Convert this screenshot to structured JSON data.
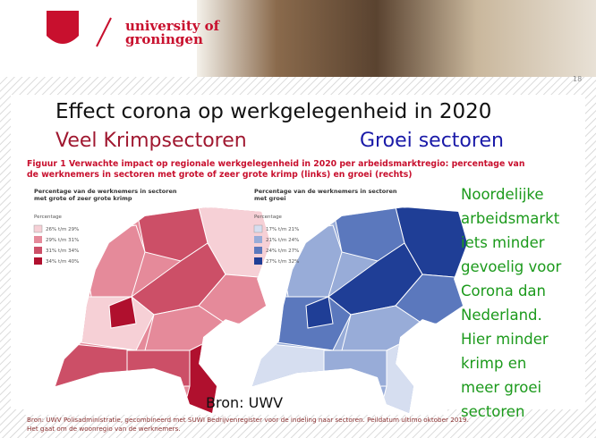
{
  "header": {
    "logo_line1": "university of",
    "logo_line2": "groningen",
    "page_number": "18"
  },
  "title": "Effect corona op werkgelegenheid in 2020",
  "subtitle_left": "Veel Krimpsectoren",
  "subtitle_right": "Groei sectoren",
  "figure": {
    "caption_lines": [
      "Figuur 1 Verwachte impact op regionale werkgelegenheid in 2020 per arbeidsmarktregio: percentage van",
      "de werknemers in sectoren met grote of zeer grote krimp (links) en groei (rechts)"
    ],
    "left_map": {
      "title_lines": [
        "Percentage van de werknemers in sectoren",
        "met grote of zeer grote krimp"
      ],
      "legend_title": "Percentage",
      "legend": [
        "26% t/m 29%",
        "29% t/m 31%",
        "31% t/m 34%",
        "34% t/m 40%"
      ]
    },
    "right_map": {
      "title_lines": [
        "Percentage van de werknemers in sectoren",
        "met groei"
      ],
      "legend_title": "Percentage",
      "legend": [
        "17% t/m 21%",
        "21% t/m 24%",
        "24% t/m 27%",
        "27% t/m 32%"
      ]
    },
    "source_inset": "Bron: UWV",
    "footnote_lines": [
      "Bron: UWV Polisadministratie, gecombineerd met SUWI Bedrijvenregister voor de indeling naar sectoren. Peildatum ultimo oktober 2019.",
      "Het gaat om de woonregio van de werknemers."
    ]
  },
  "side_text_lines": [
    "Noordelijke",
    "arbeidsmarkt",
    "iets minder",
    "gevoelig voor",
    "Corona dan",
    "Nederland.",
    "Hier minder",
    "krimp en",
    "meer groei",
    "sectoren"
  ]
}
